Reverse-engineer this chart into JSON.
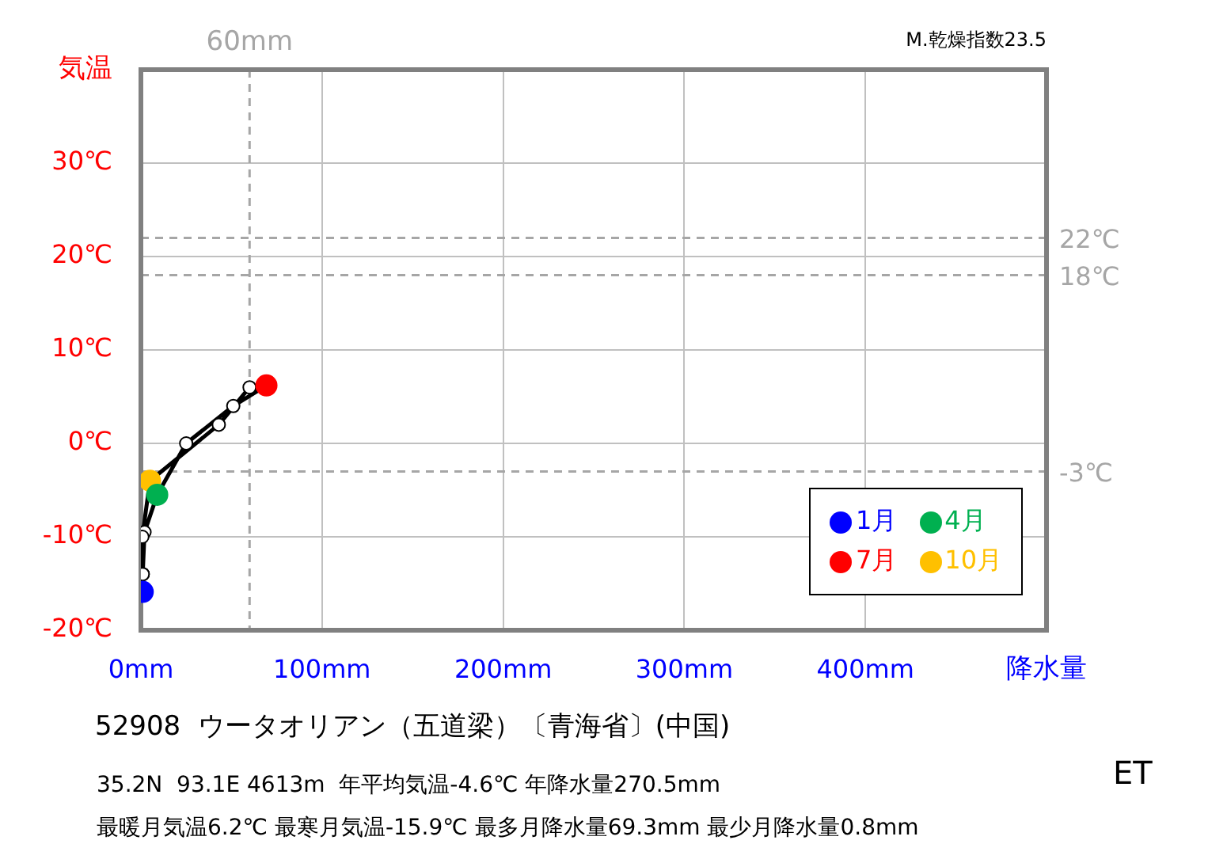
{
  "chart_data": {
    "type": "line",
    "title": "52908  ウータオリアン（五道梁）〔青海省〕(中国)",
    "xlabel": "降水量",
    "ylabel": "気温",
    "xlim": [
      0,
      500
    ],
    "xticks": [
      {
        "value": 0,
        "label": "0mm"
      },
      {
        "value": 100,
        "label": "100mm"
      },
      {
        "value": 200,
        "label": "200mm"
      },
      {
        "value": 300,
        "label": "300mm"
      },
      {
        "value": 400,
        "label": "400mm"
      }
    ],
    "ylim": [
      -20,
      40
    ],
    "yticks": [
      {
        "value": -20,
        "label": "-20℃"
      },
      {
        "value": -10,
        "label": "-10℃"
      },
      {
        "value": 0,
        "label": "0℃"
      },
      {
        "value": 10,
        "label": "10℃"
      },
      {
        "value": 20,
        "label": "20℃"
      },
      {
        "value": 30,
        "label": "30℃"
      }
    ],
    "grid": true,
    "legend": "bottom right",
    "marker": "circle",
    "series": [
      {
        "type": "line",
        "color": "#000000",
        "x": [
          1,
          1,
          2,
          9,
          25,
          51,
          69.3,
          60,
          43,
          5,
          0.8,
          1
        ],
        "values": [
          -15.9,
          -14,
          -9.5,
          -5.5,
          0,
          4,
          6.2,
          6,
          2,
          -4,
          -10,
          -14
        ],
        "colors": [
          "#0000ff",
          "#ffffff",
          "#ffffff",
          "#00b050",
          "#ffffff",
          "#ffffff",
          "#ff0000",
          "#ffffff",
          "#ffffff",
          "#ffc000",
          "#ffffff",
          "#ffffff"
        ]
      },
      {
        "type": "scatter",
        "name": "1月",
        "color": "#0000ff",
        "x": [
          1
        ],
        "values": [
          -15.9
        ]
      },
      {
        "type": "scatter",
        "name": "4月",
        "color": "#00b050",
        "x": [
          9
        ],
        "values": [
          -5.5
        ]
      },
      {
        "type": "scatter",
        "name": "7月",
        "color": "#ff0000",
        "x": [
          69.3
        ],
        "values": [
          6.2
        ]
      },
      {
        "type": "scatter",
        "name": "10月",
        "color": "#ffc000",
        "x": [
          5
        ],
        "values": [
          -4
        ]
      }
    ],
    "ref_lines": [
      {
        "axis": "y",
        "value": 22,
        "label": "22℃",
        "color": "#a6a6a6",
        "line_style": "dashed"
      },
      {
        "axis": "y",
        "value": 18,
        "label": "18℃",
        "color": "#a6a6a6",
        "line_style": "dashed"
      },
      {
        "axis": "y",
        "value": -3,
        "label": "-3℃",
        "color": "#a6a6a6",
        "line_style": "dashed"
      },
      {
        "axis": "x",
        "value": 60,
        "label": "60mm",
        "color": "#a6a6a6",
        "line_style": "dashed"
      }
    ],
    "annotations": [
      "M.乾燥指数23.5",
      "35.2N  93.1E 4613m  年平均気温-4.6℃ 年降水量270.5mm",
      "最暖月気温6.2℃ 最寒月気温-15.9℃ 最多月降水量69.3mm 最少月降水量0.8mm",
      "ET"
    ]
  }
}
